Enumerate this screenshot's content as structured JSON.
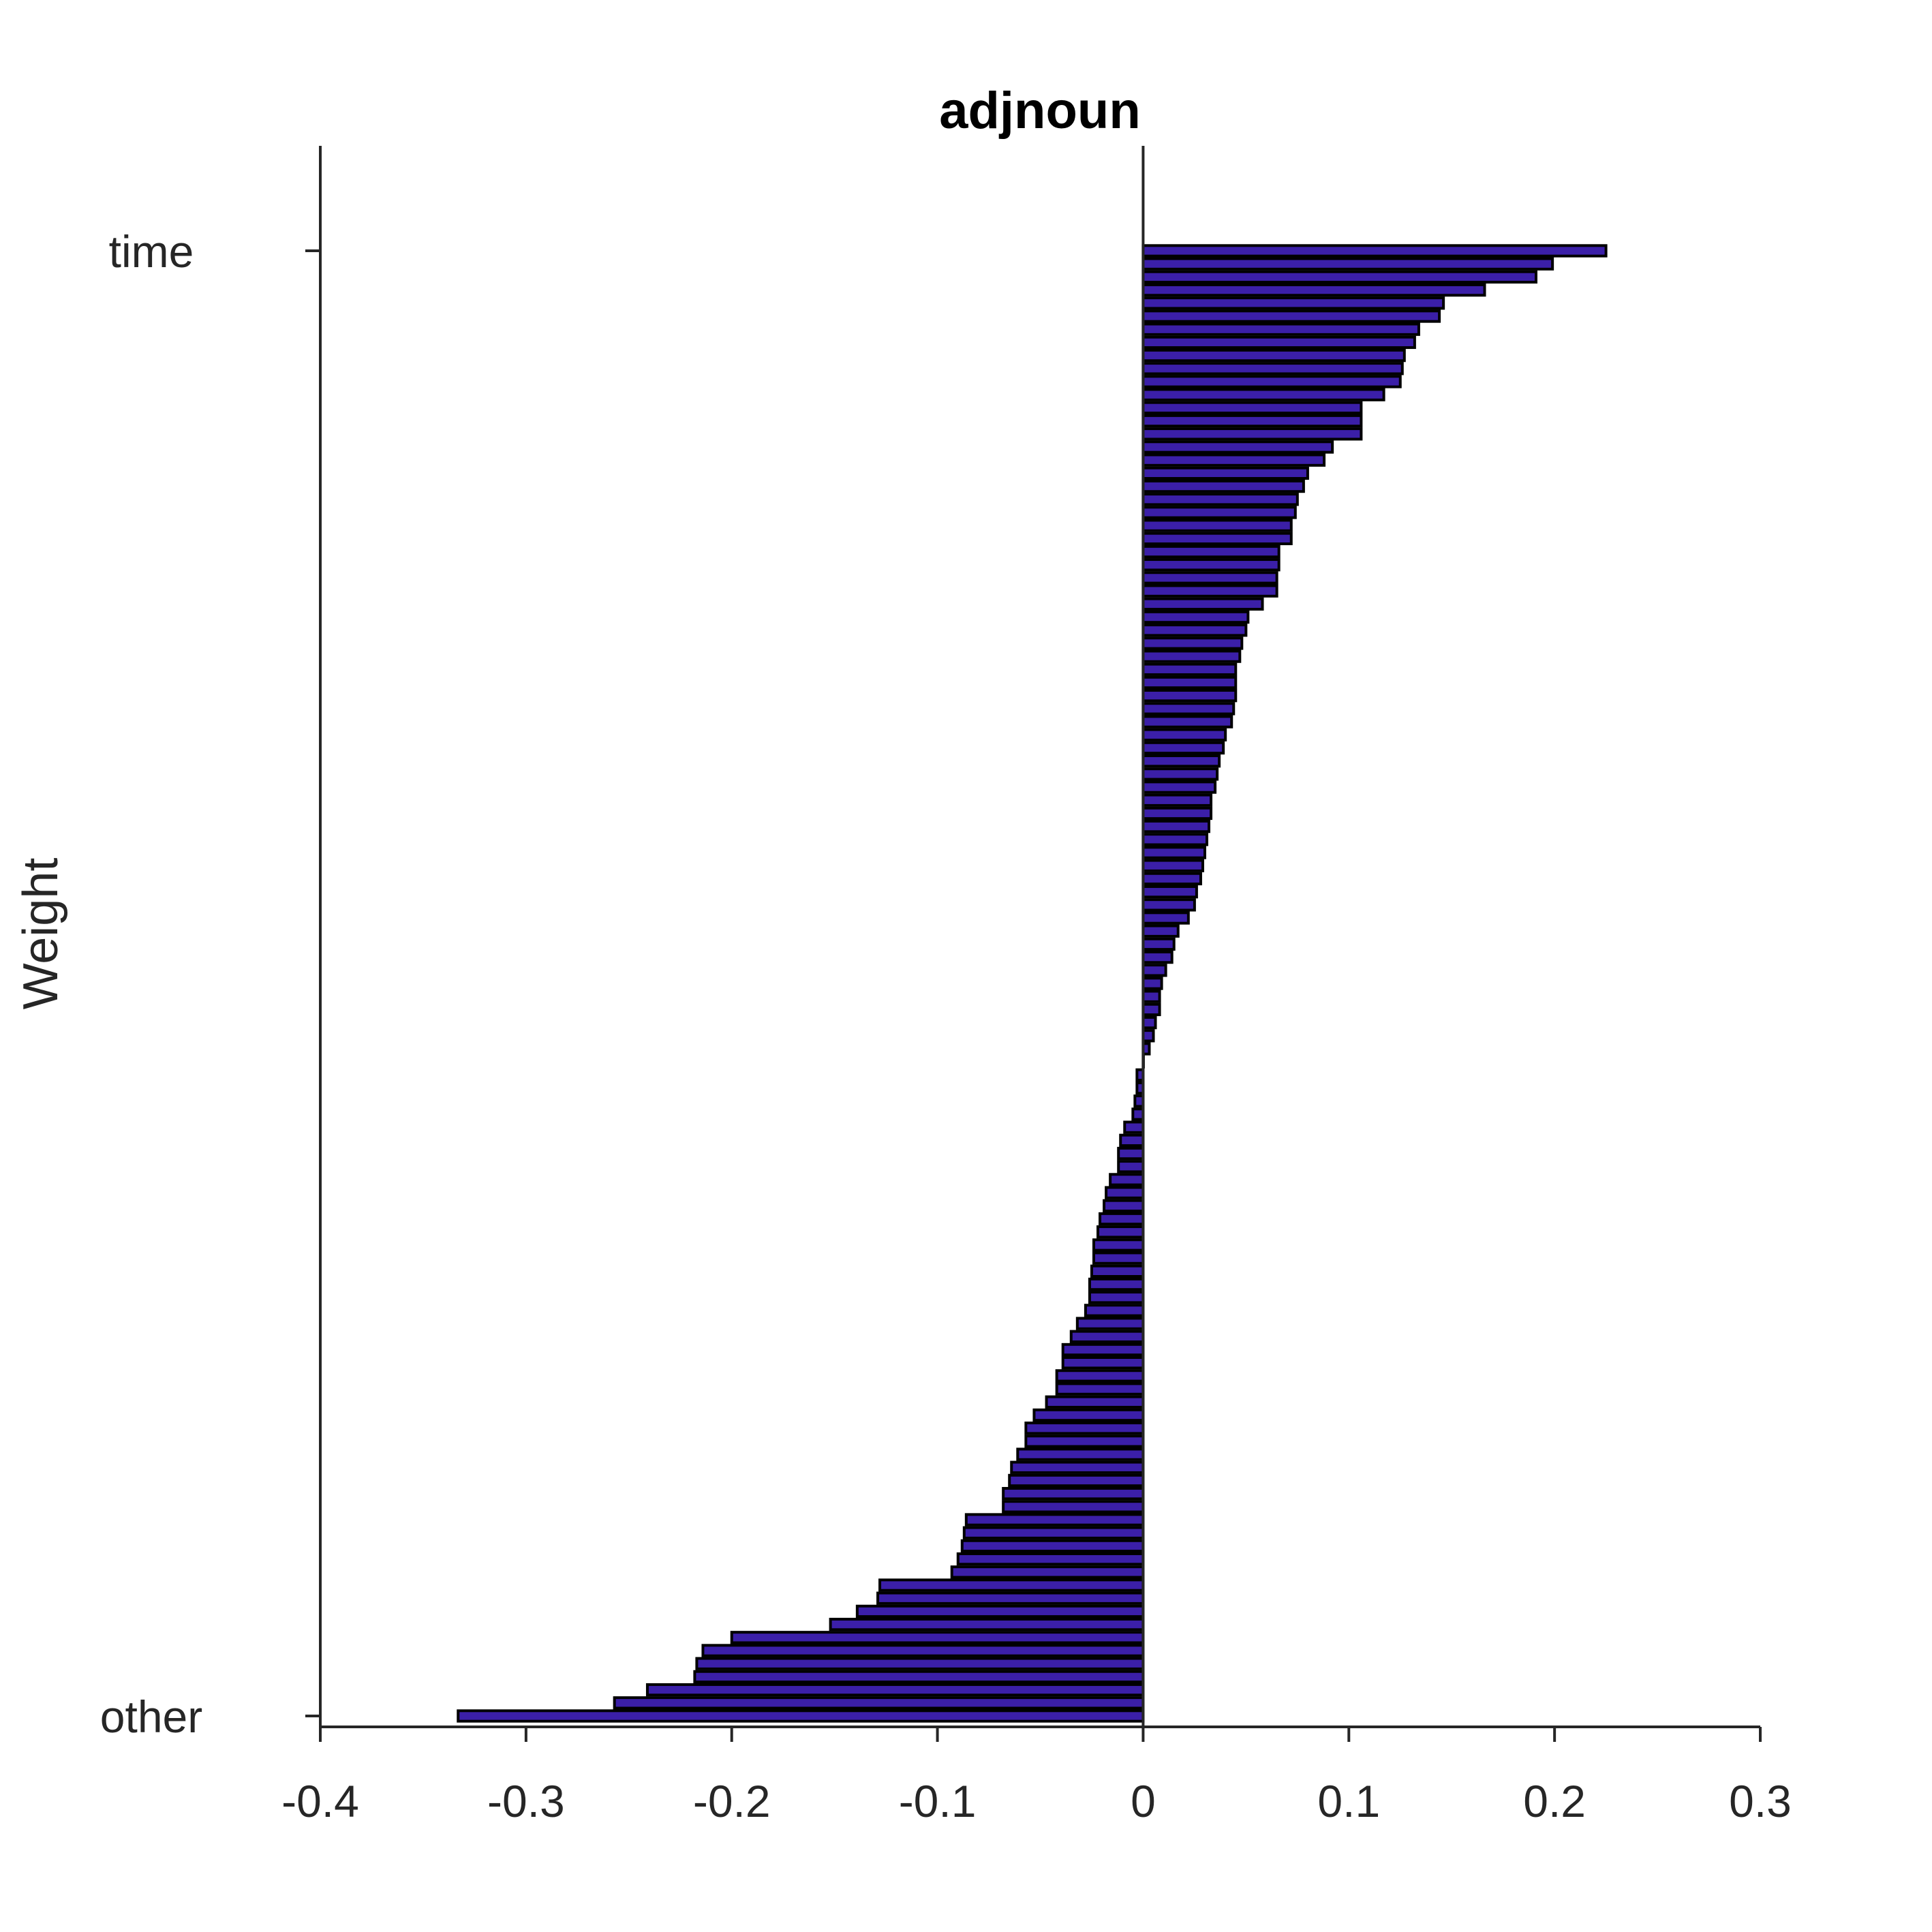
{
  "chart_data": {
    "type": "bar",
    "orientation": "horizontal",
    "title": "adjnoun",
    "xlabel": "",
    "ylabel": "Weight",
    "xlim": [
      -0.4,
      0.3
    ],
    "xticks": [
      "-0.4",
      "-0.3",
      "-0.2",
      "-0.1",
      "0",
      "0.1",
      "0.2",
      "0.3"
    ],
    "yticks": [
      "time",
      "other"
    ],
    "bar_color": "#3b1fa8",
    "edge_color": "#000000",
    "grid": false,
    "values": [
      0.225,
      0.199,
      0.191,
      0.166,
      0.146,
      0.144,
      0.134,
      0.132,
      0.127,
      0.126,
      0.125,
      0.117,
      0.106,
      0.106,
      0.106,
      0.092,
      0.088,
      0.08,
      0.078,
      0.075,
      0.074,
      0.072,
      0.072,
      0.066,
      0.066,
      0.065,
      0.065,
      0.058,
      0.051,
      0.05,
      0.048,
      0.047,
      0.045,
      0.045,
      0.045,
      0.044,
      0.043,
      0.04,
      0.039,
      0.037,
      0.036,
      0.035,
      0.033,
      0.033,
      0.032,
      0.031,
      0.03,
      0.029,
      0.028,
      0.026,
      0.025,
      0.022,
      0.017,
      0.015,
      0.014,
      0.011,
      0.009,
      0.008,
      0.008,
      0.006,
      0.005,
      0.003,
      0.0,
      -0.003,
      -0.003,
      -0.004,
      -0.005,
      -0.009,
      -0.011,
      -0.012,
      -0.012,
      -0.016,
      -0.018,
      -0.019,
      -0.021,
      -0.022,
      -0.024,
      -0.024,
      -0.025,
      -0.026,
      -0.026,
      -0.028,
      -0.032,
      -0.035,
      -0.039,
      -0.039,
      -0.042,
      -0.042,
      -0.047,
      -0.053,
      -0.057,
      -0.057,
      -0.061,
      -0.064,
      -0.065,
      -0.068,
      -0.068,
      -0.086,
      -0.087,
      -0.088,
      -0.09,
      -0.093,
      -0.128,
      -0.129,
      -0.139,
      -0.152,
      -0.2,
      -0.214,
      -0.217,
      -0.218,
      -0.241,
      -0.257,
      -0.333
    ]
  }
}
